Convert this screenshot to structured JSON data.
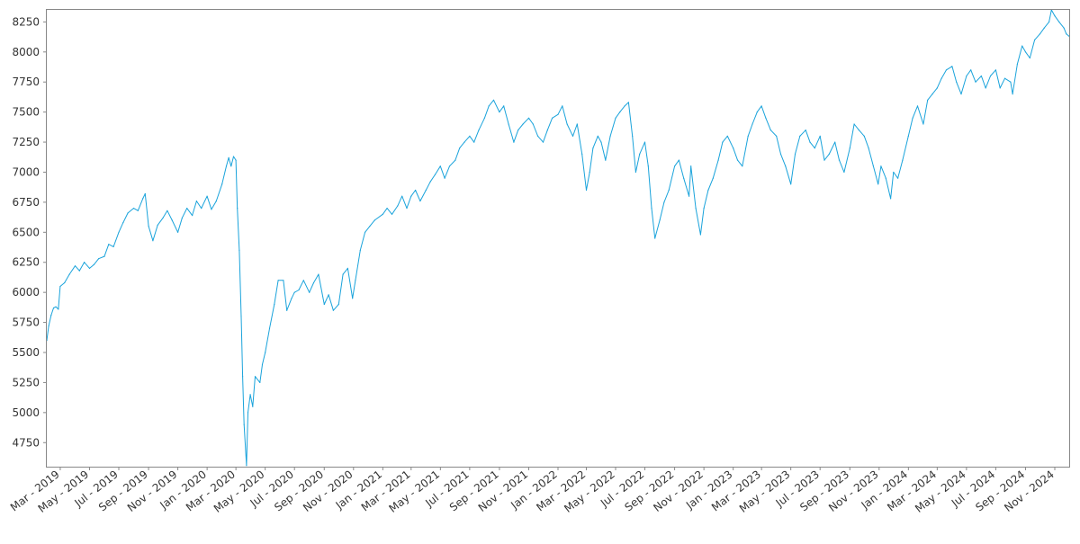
{
  "chart_data": {
    "type": "line",
    "title": "",
    "xlabel": "",
    "ylabel": "",
    "grid": false,
    "colors": {
      "line": "#1aa3db",
      "frame": "#888888",
      "background": "#ffffff"
    },
    "xlim": [
      "2019-02-01",
      "2024-12-01"
    ],
    "ylim": [
      4550,
      8350
    ],
    "y_ticks": [
      4750,
      5000,
      5250,
      5500,
      5750,
      6000,
      6250,
      6500,
      6750,
      7000,
      7250,
      7500,
      7750,
      8000,
      8250
    ],
    "x_ticks": [
      {
        "date": "2019-03-01",
        "label": "Mar - 2019"
      },
      {
        "date": "2019-05-01",
        "label": "May - 2019"
      },
      {
        "date": "2019-07-01",
        "label": "Jul - 2019"
      },
      {
        "date": "2019-09-01",
        "label": "Sep - 2019"
      },
      {
        "date": "2019-11-01",
        "label": "Nov - 2019"
      },
      {
        "date": "2020-01-01",
        "label": "Jan - 2020"
      },
      {
        "date": "2020-03-01",
        "label": "Mar - 2020"
      },
      {
        "date": "2020-05-01",
        "label": "May - 2020"
      },
      {
        "date": "2020-07-01",
        "label": "Jul - 2020"
      },
      {
        "date": "2020-09-01",
        "label": "Sep - 2020"
      },
      {
        "date": "2020-11-01",
        "label": "Nov - 2020"
      },
      {
        "date": "2021-01-01",
        "label": "Jan - 2021"
      },
      {
        "date": "2021-03-01",
        "label": "Mar - 2021"
      },
      {
        "date": "2021-05-01",
        "label": "May - 2021"
      },
      {
        "date": "2021-07-01",
        "label": "Jul - 2021"
      },
      {
        "date": "2021-09-01",
        "label": "Sep - 2021"
      },
      {
        "date": "2021-11-01",
        "label": "Nov - 2021"
      },
      {
        "date": "2022-01-01",
        "label": "Jan - 2022"
      },
      {
        "date": "2022-03-01",
        "label": "Mar - 2022"
      },
      {
        "date": "2022-05-01",
        "label": "May - 2022"
      },
      {
        "date": "2022-07-01",
        "label": "Jul - 2022"
      },
      {
        "date": "2022-09-01",
        "label": "Sep - 2022"
      },
      {
        "date": "2022-11-01",
        "label": "Nov - 2022"
      },
      {
        "date": "2023-01-01",
        "label": "Jan - 2023"
      },
      {
        "date": "2023-03-01",
        "label": "Mar - 2023"
      },
      {
        "date": "2023-05-01",
        "label": "May - 2023"
      },
      {
        "date": "2023-07-01",
        "label": "Jul - 2023"
      },
      {
        "date": "2023-09-01",
        "label": "Sep - 2023"
      },
      {
        "date": "2023-11-01",
        "label": "Nov - 2023"
      },
      {
        "date": "2024-01-01",
        "label": "Jan - 2024"
      },
      {
        "date": "2024-03-01",
        "label": "Mar - 2024"
      },
      {
        "date": "2024-05-01",
        "label": "May - 2024"
      },
      {
        "date": "2024-07-01",
        "label": "Jul - 2024"
      },
      {
        "date": "2024-09-01",
        "label": "Sep - 2024"
      },
      {
        "date": "2024-11-01",
        "label": "Nov - 2024"
      }
    ],
    "series": [
      {
        "points": [
          [
            "2019-02-01",
            5600
          ],
          [
            "2019-02-05",
            5720
          ],
          [
            "2019-02-10",
            5810
          ],
          [
            "2019-02-15",
            5870
          ],
          [
            "2019-02-20",
            5880
          ],
          [
            "2019-02-25",
            5860
          ],
          [
            "2019-03-01",
            6050
          ],
          [
            "2019-03-10",
            6080
          ],
          [
            "2019-03-20",
            6150
          ],
          [
            "2019-04-01",
            6220
          ],
          [
            "2019-04-10",
            6180
          ],
          [
            "2019-04-20",
            6250
          ],
          [
            "2019-05-01",
            6200
          ],
          [
            "2019-05-10",
            6230
          ],
          [
            "2019-05-20",
            6280
          ],
          [
            "2019-06-01",
            6300
          ],
          [
            "2019-06-10",
            6400
          ],
          [
            "2019-06-20",
            6380
          ],
          [
            "2019-07-01",
            6500
          ],
          [
            "2019-07-10",
            6580
          ],
          [
            "2019-07-20",
            6660
          ],
          [
            "2019-08-01",
            6700
          ],
          [
            "2019-08-10",
            6680
          ],
          [
            "2019-08-20",
            6780
          ],
          [
            "2019-08-25",
            6820
          ],
          [
            "2019-09-01",
            6550
          ],
          [
            "2019-09-10",
            6430
          ],
          [
            "2019-09-20",
            6560
          ],
          [
            "2019-10-01",
            6620
          ],
          [
            "2019-10-10",
            6680
          ],
          [
            "2019-10-20",
            6600
          ],
          [
            "2019-11-01",
            6500
          ],
          [
            "2019-11-10",
            6620
          ],
          [
            "2019-11-20",
            6700
          ],
          [
            "2019-12-01",
            6640
          ],
          [
            "2019-12-10",
            6760
          ],
          [
            "2019-12-20",
            6700
          ],
          [
            "2020-01-01",
            6800
          ],
          [
            "2020-01-10",
            6690
          ],
          [
            "2020-01-20",
            6760
          ],
          [
            "2020-02-01",
            6900
          ],
          [
            "2020-02-10",
            7050
          ],
          [
            "2020-02-15",
            7120
          ],
          [
            "2020-02-20",
            7050
          ],
          [
            "2020-02-25",
            7130
          ],
          [
            "2020-03-01",
            7100
          ],
          [
            "2020-03-04",
            6700
          ],
          [
            "2020-03-08",
            6350
          ],
          [
            "2020-03-12",
            5800
          ],
          [
            "2020-03-15",
            5300
          ],
          [
            "2020-03-18",
            4900
          ],
          [
            "2020-03-23",
            4560
          ],
          [
            "2020-03-26",
            5000
          ],
          [
            "2020-03-31",
            5150
          ],
          [
            "2020-04-05",
            5050
          ],
          [
            "2020-04-10",
            5300
          ],
          [
            "2020-04-20",
            5250
          ],
          [
            "2020-04-25",
            5400
          ],
          [
            "2020-05-01",
            5500
          ],
          [
            "2020-05-10",
            5700
          ],
          [
            "2020-05-20",
            5900
          ],
          [
            "2020-05-28",
            6100
          ],
          [
            "2020-06-08",
            6100
          ],
          [
            "2020-06-15",
            5850
          ],
          [
            "2020-06-25",
            5950
          ],
          [
            "2020-07-01",
            6000
          ],
          [
            "2020-07-10",
            6020
          ],
          [
            "2020-07-20",
            6100
          ],
          [
            "2020-08-01",
            6000
          ],
          [
            "2020-08-10",
            6080
          ],
          [
            "2020-08-20",
            6150
          ],
          [
            "2020-09-01",
            5900
          ],
          [
            "2020-09-10",
            5980
          ],
          [
            "2020-09-20",
            5850
          ],
          [
            "2020-10-01",
            5900
          ],
          [
            "2020-10-10",
            6150
          ],
          [
            "2020-10-20",
            6200
          ],
          [
            "2020-10-30",
            5950
          ],
          [
            "2020-11-05",
            6100
          ],
          [
            "2020-11-15",
            6350
          ],
          [
            "2020-11-25",
            6500
          ],
          [
            "2020-12-05",
            6550
          ],
          [
            "2020-12-15",
            6600
          ],
          [
            "2021-01-01",
            6650
          ],
          [
            "2021-01-10",
            6700
          ],
          [
            "2021-01-20",
            6650
          ],
          [
            "2021-02-01",
            6720
          ],
          [
            "2021-02-10",
            6800
          ],
          [
            "2021-02-20",
            6700
          ],
          [
            "2021-03-01",
            6800
          ],
          [
            "2021-03-10",
            6850
          ],
          [
            "2021-03-20",
            6760
          ],
          [
            "2021-04-01",
            6850
          ],
          [
            "2021-04-10",
            6920
          ],
          [
            "2021-04-20",
            6980
          ],
          [
            "2021-05-01",
            7050
          ],
          [
            "2021-05-10",
            6950
          ],
          [
            "2021-05-20",
            7050
          ],
          [
            "2021-06-01",
            7100
          ],
          [
            "2021-06-10",
            7200
          ],
          [
            "2021-06-20",
            7250
          ],
          [
            "2021-07-01",
            7300
          ],
          [
            "2021-07-10",
            7250
          ],
          [
            "2021-07-20",
            7350
          ],
          [
            "2021-08-01",
            7450
          ],
          [
            "2021-08-10",
            7550
          ],
          [
            "2021-08-20",
            7600
          ],
          [
            "2021-09-01",
            7500
          ],
          [
            "2021-09-10",
            7550
          ],
          [
            "2021-09-20",
            7400
          ],
          [
            "2021-10-01",
            7250
          ],
          [
            "2021-10-10",
            7350
          ],
          [
            "2021-10-20",
            7400
          ],
          [
            "2021-11-01",
            7450
          ],
          [
            "2021-11-10",
            7400
          ],
          [
            "2021-11-20",
            7300
          ],
          [
            "2021-12-01",
            7250
          ],
          [
            "2021-12-10",
            7350
          ],
          [
            "2021-12-20",
            7450
          ],
          [
            "2022-01-01",
            7480
          ],
          [
            "2022-01-10",
            7550
          ],
          [
            "2022-01-20",
            7400
          ],
          [
            "2022-02-01",
            7300
          ],
          [
            "2022-02-10",
            7400
          ],
          [
            "2022-02-20",
            7150
          ],
          [
            "2022-03-01",
            6850
          ],
          [
            "2022-03-08",
            7000
          ],
          [
            "2022-03-15",
            7200
          ],
          [
            "2022-03-25",
            7300
          ],
          [
            "2022-04-01",
            7250
          ],
          [
            "2022-04-10",
            7100
          ],
          [
            "2022-04-20",
            7300
          ],
          [
            "2022-05-01",
            7450
          ],
          [
            "2022-05-10",
            7500
          ],
          [
            "2022-05-20",
            7550
          ],
          [
            "2022-05-28",
            7580
          ],
          [
            "2022-06-05",
            7300
          ],
          [
            "2022-06-12",
            7000
          ],
          [
            "2022-06-20",
            7150
          ],
          [
            "2022-07-01",
            7250
          ],
          [
            "2022-07-08",
            7050
          ],
          [
            "2022-07-15",
            6700
          ],
          [
            "2022-07-22",
            6450
          ],
          [
            "2022-08-01",
            6600
          ],
          [
            "2022-08-10",
            6750
          ],
          [
            "2022-08-20",
            6850
          ],
          [
            "2022-09-01",
            7050
          ],
          [
            "2022-09-10",
            7100
          ],
          [
            "2022-09-20",
            6950
          ],
          [
            "2022-10-01",
            6800
          ],
          [
            "2022-10-05",
            7050
          ],
          [
            "2022-10-15",
            6700
          ],
          [
            "2022-10-25",
            6480
          ],
          [
            "2022-11-01",
            6700
          ],
          [
            "2022-11-10",
            6850
          ],
          [
            "2022-11-20",
            6950
          ],
          [
            "2022-12-01",
            7100
          ],
          [
            "2022-12-10",
            7250
          ],
          [
            "2022-12-20",
            7300
          ],
          [
            "2023-01-01",
            7200
          ],
          [
            "2023-01-10",
            7100
          ],
          [
            "2023-01-20",
            7050
          ],
          [
            "2023-02-01",
            7300
          ],
          [
            "2023-02-10",
            7400
          ],
          [
            "2023-02-20",
            7500
          ],
          [
            "2023-03-01",
            7550
          ],
          [
            "2023-03-10",
            7450
          ],
          [
            "2023-03-20",
            7350
          ],
          [
            "2023-04-01",
            7300
          ],
          [
            "2023-04-10",
            7150
          ],
          [
            "2023-04-20",
            7050
          ],
          [
            "2023-05-01",
            6900
          ],
          [
            "2023-05-10",
            7150
          ],
          [
            "2023-05-20",
            7300
          ],
          [
            "2023-06-01",
            7350
          ],
          [
            "2023-06-10",
            7250
          ],
          [
            "2023-06-20",
            7200
          ],
          [
            "2023-07-01",
            7300
          ],
          [
            "2023-07-10",
            7100
          ],
          [
            "2023-07-20",
            7150
          ],
          [
            "2023-08-01",
            7250
          ],
          [
            "2023-08-10",
            7100
          ],
          [
            "2023-08-20",
            7000
          ],
          [
            "2023-09-01",
            7200
          ],
          [
            "2023-09-10",
            7400
          ],
          [
            "2023-09-20",
            7350
          ],
          [
            "2023-10-01",
            7300
          ],
          [
            "2023-10-10",
            7200
          ],
          [
            "2023-10-20",
            7050
          ],
          [
            "2023-10-30",
            6900
          ],
          [
            "2023-11-05",
            7050
          ],
          [
            "2023-11-15",
            6950
          ],
          [
            "2023-11-25",
            6780
          ],
          [
            "2023-12-01",
            7000
          ],
          [
            "2023-12-10",
            6950
          ],
          [
            "2023-12-20",
            7100
          ],
          [
            "2024-01-01",
            7300
          ],
          [
            "2024-01-10",
            7450
          ],
          [
            "2024-01-20",
            7550
          ],
          [
            "2024-02-01",
            7400
          ],
          [
            "2024-02-10",
            7600
          ],
          [
            "2024-02-20",
            7650
          ],
          [
            "2024-03-01",
            7700
          ],
          [
            "2024-03-10",
            7780
          ],
          [
            "2024-03-20",
            7850
          ],
          [
            "2024-04-01",
            7880
          ],
          [
            "2024-04-10",
            7750
          ],
          [
            "2024-04-20",
            7650
          ],
          [
            "2024-05-01",
            7800
          ],
          [
            "2024-05-10",
            7850
          ],
          [
            "2024-05-20",
            7750
          ],
          [
            "2024-06-01",
            7800
          ],
          [
            "2024-06-10",
            7700
          ],
          [
            "2024-06-20",
            7800
          ],
          [
            "2024-07-01",
            7850
          ],
          [
            "2024-07-10",
            7700
          ],
          [
            "2024-07-20",
            7780
          ],
          [
            "2024-08-01",
            7750
          ],
          [
            "2024-08-05",
            7650
          ],
          [
            "2024-08-15",
            7900
          ],
          [
            "2024-08-25",
            8050
          ],
          [
            "2024-09-01",
            8000
          ],
          [
            "2024-09-10",
            7950
          ],
          [
            "2024-09-20",
            8100
          ],
          [
            "2024-10-01",
            8150
          ],
          [
            "2024-10-10",
            8200
          ],
          [
            "2024-10-20",
            8250
          ],
          [
            "2024-10-25",
            8350
          ],
          [
            "2024-11-01",
            8300
          ],
          [
            "2024-11-10",
            8250
          ],
          [
            "2024-11-20",
            8200
          ],
          [
            "2024-11-25",
            8150
          ],
          [
            "2024-12-01",
            8130
          ]
        ]
      }
    ]
  }
}
